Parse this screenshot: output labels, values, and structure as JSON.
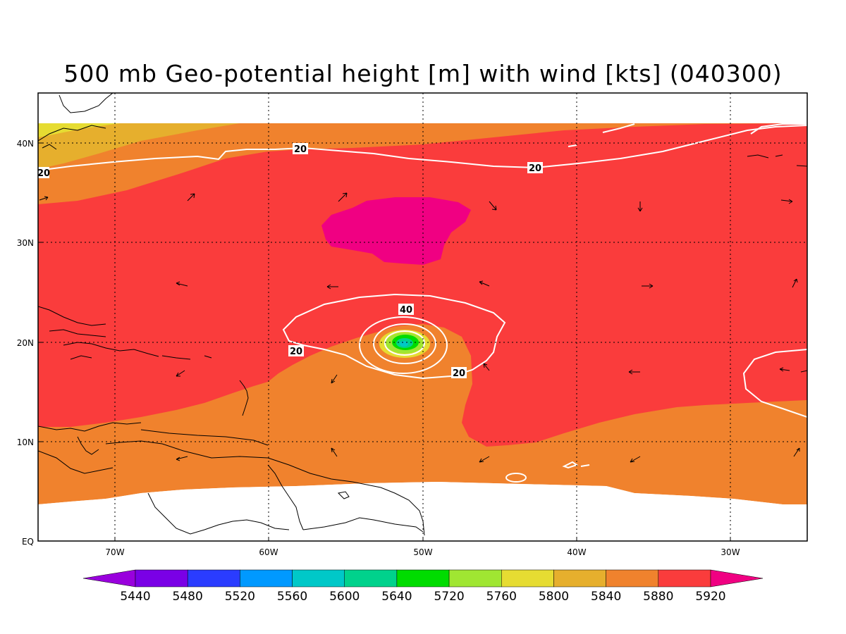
{
  "title": "500 mb Geo-potential height [m] with wind [kts] (040300)",
  "axes": {
    "lon_ticks": [
      "70W",
      "60W",
      "50W",
      "40W",
      "30W"
    ],
    "lat_ticks": [
      "EQ",
      "10N",
      "20N",
      "30N",
      "40N"
    ]
  },
  "colorbar": {
    "labels": [
      "5440",
      "5480",
      "5520",
      "5560",
      "5600",
      "5640",
      "5720",
      "5760",
      "5800",
      "5840",
      "5880",
      "5920"
    ],
    "colors": [
      "#9900dd",
      "#7a00e6",
      "#2a3cff",
      "#0099ff",
      "#00c8c8",
      "#00d28c",
      "#00dc00",
      "#a0e632",
      "#e6dc32",
      "#e6af2d",
      "#f0822d",
      "#fa3c3c",
      "#f00082"
    ]
  },
  "contour_labels": [
    "20",
    "20",
    "20",
    "40",
    "20",
    "20"
  ],
  "map": {
    "region": "Western North Atlantic",
    "lon_range": [
      "75W",
      "25W"
    ],
    "lat_range": [
      "EQ",
      "45N"
    ],
    "fill_colors": {
      "h5800": "#e6dc32",
      "h5840": "#e6af2d",
      "h5880": "#f0822d",
      "h5920": "#fa3c3c",
      "h5960": "#f00082",
      "undefined": "#ffffff"
    }
  }
}
